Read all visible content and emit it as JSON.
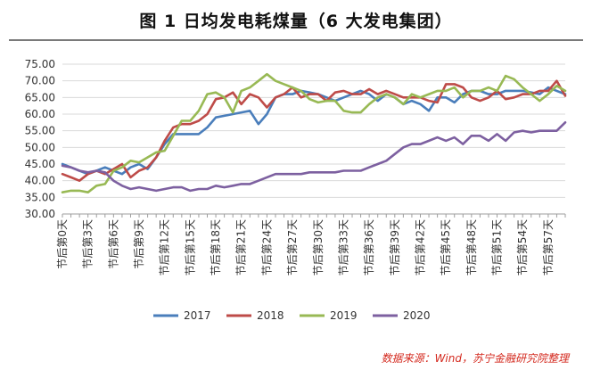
{
  "page": {
    "title": "图 1  日均发电耗煤量（6 大发电集团）",
    "source": "数据来源：Wind，苏宁金融研究院整理"
  },
  "chart_data": {
    "type": "line",
    "title": "图 1  日均发电耗煤量（6 大发电集团）",
    "xlabel": "",
    "ylabel": "",
    "ylim": [
      30,
      75
    ],
    "yticks": [
      "30.00",
      "35.00",
      "40.00",
      "45.00",
      "50.00",
      "55.00",
      "60.00",
      "65.00",
      "70.00",
      "75.00"
    ],
    "grid": true,
    "legend_position": "bottom",
    "x": [
      0,
      1,
      2,
      3,
      4,
      5,
      6,
      7,
      8,
      9,
      10,
      11,
      12,
      13,
      14,
      15,
      16,
      17,
      18,
      19,
      20,
      21,
      22,
      23,
      24,
      25,
      26,
      27,
      28,
      29,
      30,
      31,
      32,
      33,
      34,
      35,
      36,
      37,
      38,
      39,
      40,
      41,
      42,
      43,
      44,
      45,
      46,
      47,
      48,
      49,
      50,
      51,
      52,
      53,
      54,
      55,
      56,
      57,
      58,
      59
    ],
    "x_tick_labels": [
      "节后第0天",
      "节后第3天",
      "节后第6天",
      "节后第9天",
      "节后第12天",
      "节后第15天",
      "节后第18天",
      "节后第21天",
      "节后第24天",
      "节后第27天",
      "节后第30天",
      "节后第33天",
      "节后第36天",
      "节后第39天",
      "节后第42天",
      "节后第45天",
      "节后第48天",
      "节后第51天",
      "节后第54天",
      "节后第57天"
    ],
    "series": [
      {
        "name": "2017",
        "color": "#4a7ebb",
        "values": [
          45,
          44,
          43,
          42,
          43,
          44,
          43,
          42,
          44,
          45,
          43.5,
          47,
          51,
          54,
          54,
          54,
          54,
          56,
          59,
          59.5,
          60,
          60.5,
          61,
          57,
          60,
          65,
          66,
          66,
          67,
          66.5,
          66,
          65,
          64,
          65,
          66,
          67,
          66,
          64,
          66,
          65,
          63,
          64,
          63,
          61,
          65,
          65,
          63.5,
          66,
          67,
          67,
          66,
          66,
          67,
          67,
          67,
          66.5,
          66,
          68,
          67,
          66
        ]
      },
      {
        "name": "2018",
        "color": "#be4b48",
        "values": [
          42,
          41,
          40,
          42,
          43,
          42,
          43.5,
          45,
          41,
          43,
          44,
          47,
          52,
          56,
          57,
          57,
          58,
          60,
          64.5,
          65,
          66.5,
          63,
          66,
          65,
          62,
          65,
          66,
          68,
          65,
          66,
          66,
          64,
          66.5,
          67,
          66,
          66,
          67.5,
          66,
          67,
          66,
          65,
          65,
          65,
          64,
          63.5,
          69,
          69,
          68,
          65,
          64,
          65,
          67,
          64.5,
          65,
          66,
          66,
          67,
          67,
          70,
          65.5
        ]
      },
      {
        "name": "2019",
        "color": "#98b954",
        "values": [
          36.5,
          37,
          37,
          36.5,
          38.5,
          39,
          43,
          44,
          46,
          45.5,
          47,
          48.5,
          49,
          53.5,
          58,
          58,
          61,
          66,
          66.5,
          65,
          60.5,
          67,
          68,
          70,
          72,
          70,
          69,
          68,
          67,
          64.5,
          63.5,
          64,
          64,
          61,
          60.5,
          60.5,
          63,
          65,
          66,
          65,
          63,
          66,
          65,
          66,
          67,
          67,
          68,
          65,
          67,
          67,
          68,
          67,
          71.5,
          70.5,
          68,
          66,
          64,
          66,
          68.5,
          67
        ]
      },
      {
        "name": "2020",
        "color": "#7d60a0",
        "values": [
          44.5,
          44,
          43,
          42.5,
          43,
          42.5,
          40,
          38.5,
          37.5,
          38,
          37.5,
          37,
          37.5,
          38,
          38,
          37,
          37.5,
          37.5,
          38.5,
          38,
          38.5,
          39,
          39,
          40,
          41,
          42,
          42,
          42,
          42,
          42.5,
          42.5,
          42.5,
          42.5,
          43,
          43,
          43,
          44,
          45,
          46,
          48,
          50,
          51,
          51,
          52,
          53,
          52,
          53,
          51,
          53.5,
          53.5,
          52,
          54,
          52,
          54.5,
          55,
          54.5,
          55,
          55,
          55,
          57.5
        ]
      }
    ]
  }
}
